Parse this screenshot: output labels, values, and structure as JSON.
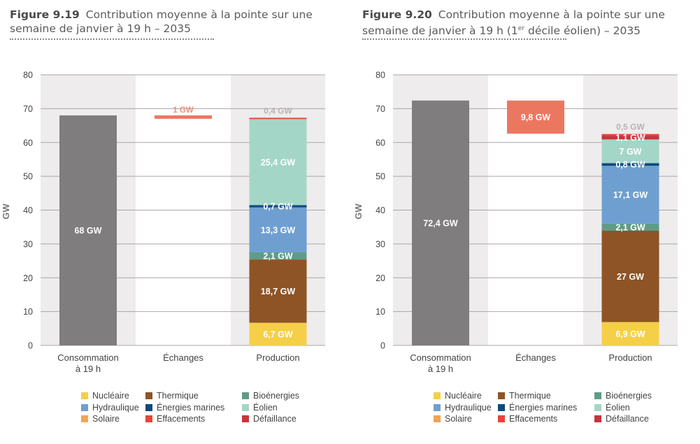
{
  "chart_data": [
    {
      "type": "bar",
      "figure_number": "Figure 9.19",
      "title": "Contribution moyenne à la pointe sur une semaine de janvier à 19 h – 2035",
      "ylabel": "GW",
      "ylim": [
        0,
        80
      ],
      "yticks": [
        0,
        10,
        20,
        30,
        40,
        50,
        60,
        70,
        80
      ],
      "categories": [
        "Consommation\nà 19 h",
        "Échanges",
        "Production"
      ],
      "consommation": {
        "value": 68,
        "label": "68 GW"
      },
      "echanges": {
        "value": 1,
        "label": "1 GW",
        "base": 67
      },
      "production": [
        {
          "name": "Nucléaire",
          "value": 6.7,
          "label": "6,7 GW"
        },
        {
          "name": "Thermique",
          "value": 18.7,
          "label": "18,7 GW"
        },
        {
          "name": "Bioénergies",
          "value": 2.1,
          "label": "2,1 GW"
        },
        {
          "name": "Hydraulique",
          "value": 13.3,
          "label": "13,3 GW"
        },
        {
          "name": "Énergies marines",
          "value": 0.7,
          "label": "0,7 GW"
        },
        {
          "name": "Éolien",
          "value": 25.4,
          "label": "25,4 GW"
        },
        {
          "name": "Effacements",
          "value": 0.4,
          "label": "0,4 GW"
        }
      ]
    },
    {
      "type": "bar",
      "figure_number": "Figure 9.20",
      "title": "Contribution moyenne à la pointe sur une semaine de janvier à 19 h (1er décile éolien) – 2035",
      "ylabel": "GW",
      "ylim": [
        0,
        80
      ],
      "yticks": [
        0,
        10,
        20,
        30,
        40,
        50,
        60,
        70,
        80
      ],
      "categories": [
        "Consommation\nà 19 h",
        "Échanges",
        "Production"
      ],
      "consommation": {
        "value": 72.4,
        "label": "72,4 GW"
      },
      "echanges": {
        "value": 9.8,
        "label": "9,8 GW",
        "base": 62.6
      },
      "production": [
        {
          "name": "Nucléaire",
          "value": 6.9,
          "label": "6,9 GW"
        },
        {
          "name": "Thermique",
          "value": 27,
          "label": "27 GW"
        },
        {
          "name": "Bioénergies",
          "value": 2.1,
          "label": "2,1 GW"
        },
        {
          "name": "Hydraulique",
          "value": 17.1,
          "label": "17,1 GW"
        },
        {
          "name": "Énergies marines",
          "value": 0.8,
          "label": "0,8 GW"
        },
        {
          "name": "Éolien",
          "value": 7,
          "label": "7 GW"
        },
        {
          "name": "Défaillance",
          "value": 1.1,
          "label": "1,1 GW"
        },
        {
          "name": "Effacements",
          "value": 0.5,
          "label": "0,5 GW"
        }
      ]
    }
  ],
  "legend": [
    {
      "name": "Nucléaire",
      "color": "#f5cf47"
    },
    {
      "name": "Thermique",
      "color": "#8e5426"
    },
    {
      "name": "Bioénergies",
      "color": "#5f9c88"
    },
    {
      "name": "Hydraulique",
      "color": "#6f9fd1"
    },
    {
      "name": "Énergies marines",
      "color": "#0e4a7c"
    },
    {
      "name": "Éolien",
      "color": "#a4d6c8"
    },
    {
      "name": "Solaire",
      "color": "#f0a555"
    },
    {
      "name": "Effacements",
      "color": "#e8443a"
    },
    {
      "name": "Défaillance",
      "color": "#c8343b"
    }
  ],
  "colors": {
    "Nucléaire": "#f5cf47",
    "Thermique": "#8e5426",
    "Bioénergies": "#5f9c88",
    "Hydraulique": "#6f9fd1",
    "Énergies marines": "#0e4a7c",
    "Éolien": "#a4d6c8",
    "Solaire": "#f0a555",
    "Effacements": "#e8443a",
    "Défaillance": "#c8343b",
    "consommation": "#807d7e",
    "echanges": "#ec7761",
    "band": "#efecee",
    "grid": "#aaa6a7",
    "effacements_label": "#b8b2b3"
  }
}
